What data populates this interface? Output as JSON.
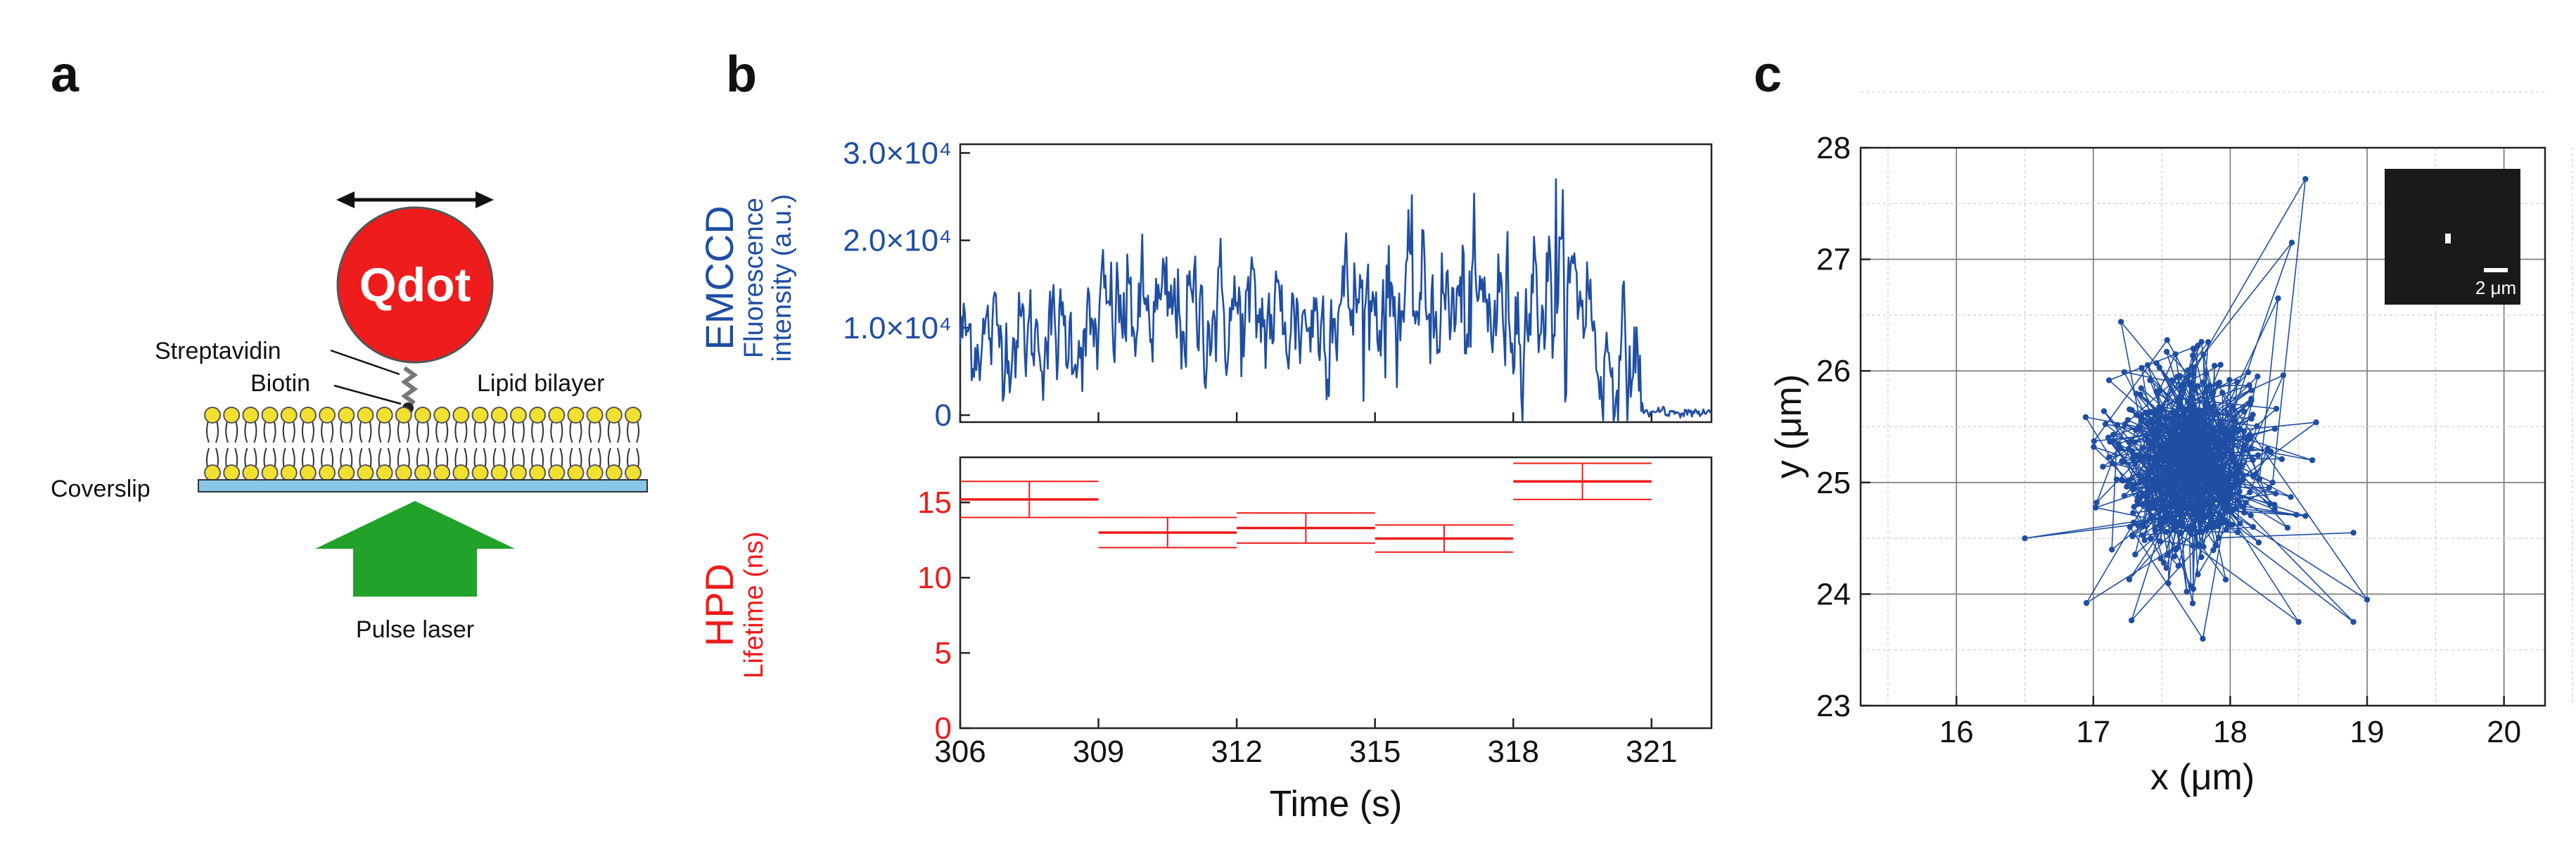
{
  "panels": {
    "a": {
      "letter": "a",
      "qdot_label": "Qdot",
      "streptavidin_label": "Streptavidin",
      "biotin_label": "Biotin",
      "lipid_bilayer_label": "Lipid bilayer",
      "coverslip_label": "Coverslip",
      "pulse_laser_label": "Pulse laser"
    },
    "b": {
      "letter": "b"
    },
    "c": {
      "letter": "c"
    }
  },
  "colors": {
    "blue": "#1f4ea3",
    "red": "#ee1c1c",
    "qdot": "#ee1c1c",
    "green": "#22a22a",
    "lipid": "#f2e030",
    "coverslip": "#86c6e8"
  },
  "chart_data": [
    {
      "id": "emccd",
      "type": "line",
      "title": "",
      "ylabel_main": "EMCCD",
      "ylabel_sub1": "Fluorescence",
      "ylabel_sub2": "intensity (a.u.)",
      "yticks": [
        {
          "value": 0,
          "label": "0"
        },
        {
          "value": 10000,
          "label": "1.0×10⁴"
        },
        {
          "value": 20000,
          "label": "2.0×10⁴"
        },
        {
          "value": 30000,
          "label": "3.0×10⁴"
        }
      ],
      "xlim": [
        306,
        322.3
      ],
      "ylim": [
        -800,
        31000
      ],
      "segments": [
        {
          "t0": 306.0,
          "t1": 309.0,
          "mean": 9000,
          "amp": 5000
        },
        {
          "t0": 309.0,
          "t1": 312.0,
          "mean": 11500,
          "amp": 6000
        },
        {
          "t0": 312.0,
          "t1": 314.0,
          "mean": 11000,
          "amp": 6000
        },
        {
          "t0": 314.0,
          "t1": 316.5,
          "mean": 13000,
          "amp": 6500
        },
        {
          "t0": 316.5,
          "t1": 318.3,
          "mean": 12000,
          "amp": 7000
        },
        {
          "t0": 318.3,
          "t1": 319.7,
          "mean": 14000,
          "amp": 7000
        },
        {
          "t0": 319.7,
          "t1": 320.8,
          "mean": 6000,
          "amp": 6000
        },
        {
          "t0": 320.8,
          "t1": 322.3,
          "mean": 300,
          "amp": 500
        }
      ],
      "peak_value": 27000
    },
    {
      "id": "hpd",
      "type": "errorbar",
      "ylabel_main": "HPD",
      "ylabel_sub": "Lifetime (ns)",
      "xlabel": "Time (s)",
      "xlim": [
        306,
        322.3
      ],
      "ylim": [
        0,
        18
      ],
      "xticks": [
        306,
        309,
        312,
        315,
        318,
        321
      ],
      "yticks": [
        0,
        5,
        10,
        15
      ],
      "points": [
        {
          "x0": 306.0,
          "x1": 309.0,
          "mean": 15.2,
          "err": 1.2
        },
        {
          "x0": 309.0,
          "x1": 312.0,
          "mean": 13.0,
          "err": 1.0
        },
        {
          "x0": 312.0,
          "x1": 315.0,
          "mean": 13.3,
          "err": 1.0
        },
        {
          "x0": 315.0,
          "x1": 318.0,
          "mean": 12.6,
          "err": 0.9
        },
        {
          "x0": 318.0,
          "x1": 321.0,
          "mean": 16.4,
          "err": 1.2
        }
      ]
    },
    {
      "id": "trajectory",
      "type": "scatter",
      "xlabel": "x (μm)",
      "ylabel": "y (μm)",
      "xlim": [
        15.3,
        20.3
      ],
      "ylim": [
        23,
        28
      ],
      "xticks": [
        16,
        17,
        18,
        19,
        20
      ],
      "yticks": [
        23,
        24,
        25,
        26,
        27,
        28
      ],
      "cluster_center": [
        17.7,
        25.15
      ],
      "cluster_spread": [
        0.28,
        0.42
      ],
      "cluster_count": 650,
      "outliers": [
        [
          16.5,
          24.5
        ],
        [
          16.95,
          23.92
        ],
        [
          17.8,
          23.6
        ],
        [
          18.5,
          23.75
        ],
        [
          18.9,
          23.75
        ],
        [
          19.0,
          23.95
        ],
        [
          18.55,
          27.72
        ],
        [
          18.45,
          27.15
        ],
        [
          18.35,
          26.65
        ],
        [
          18.2,
          25.95
        ],
        [
          18.05,
          25.9
        ],
        [
          17.6,
          26.15
        ],
        [
          18.6,
          25.2
        ],
        [
          18.55,
          24.7
        ],
        [
          18.9,
          24.55
        ]
      ],
      "inset_scalebar": "2 μm"
    }
  ]
}
